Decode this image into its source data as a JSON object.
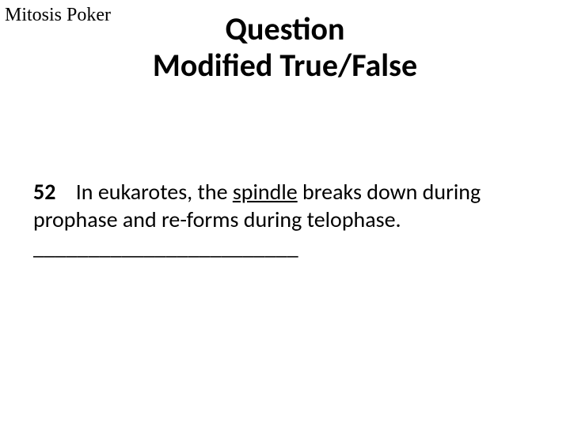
{
  "header": {
    "label": "Mitosis Poker"
  },
  "title": {
    "line1": "Question",
    "line2": "Modified True/False"
  },
  "question": {
    "number": "52",
    "text_before_underline": "In eukarotes, the ",
    "underlined_word": "spindle",
    "text_after_underline": " breaks down during prophase and re-forms during telophase. ________________________"
  },
  "style": {
    "background_color": "#ffffff",
    "text_color": "#000000",
    "header_font": "Times New Roman",
    "body_font": "Calibri",
    "title_fontsize": 40,
    "title_weight": 700,
    "body_fontsize": 28,
    "header_fontsize": 24
  }
}
